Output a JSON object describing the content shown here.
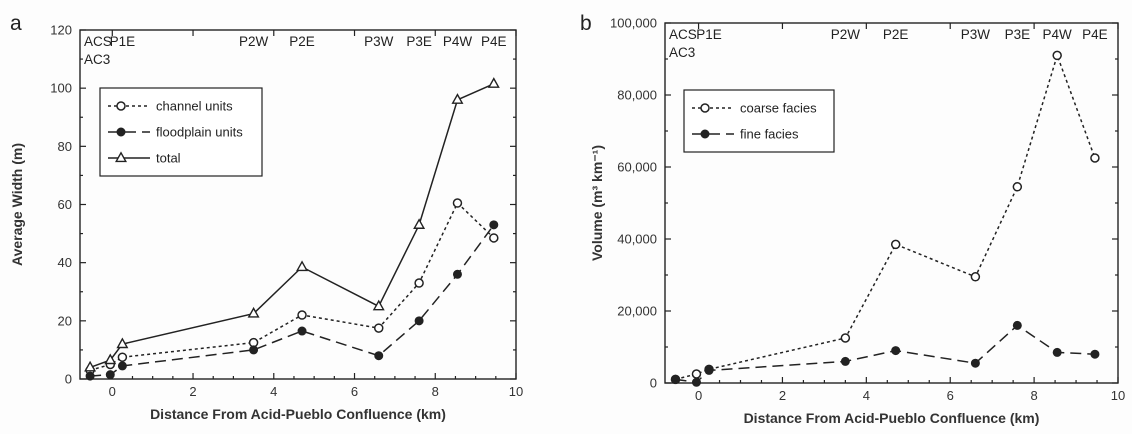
{
  "chart_data": [
    {
      "panel": "a",
      "type": "line",
      "xlabel": "Distance From Acid-Pueblo Confluence (km)",
      "ylabel": "Average Width (m)",
      "xlim": [
        -0.8,
        10
      ],
      "ylim": [
        0,
        120
      ],
      "xticks": [
        0,
        2,
        4,
        6,
        8,
        10
      ],
      "yticks": [
        0,
        20,
        40,
        60,
        80,
        100,
        120
      ],
      "site_labels": [
        {
          "label": "ACS",
          "x": -0.55,
          "row": 1
        },
        {
          "label": "AC3",
          "x": -0.55,
          "row": 2
        },
        {
          "label": "P1E",
          "x": 0.25,
          "row": 1
        },
        {
          "label": "P2W",
          "x": 3.5,
          "row": 1
        },
        {
          "label": "P2E",
          "x": 4.7,
          "row": 1
        },
        {
          "label": "P3W",
          "x": 6.6,
          "row": 1
        },
        {
          "label": "P3E",
          "x": 7.6,
          "row": 1
        },
        {
          "label": "P4W",
          "x": 8.55,
          "row": 1
        },
        {
          "label": "P4E",
          "x": 9.45,
          "row": 1
        }
      ],
      "legend": {
        "position": "upper-left"
      },
      "series": [
        {
          "name": "channel units",
          "marker": "open-circle",
          "dash": "dotted",
          "x": [
            -0.55,
            -0.05,
            0.25,
            3.5,
            4.7,
            6.6,
            7.6,
            8.55,
            9.45
          ],
          "y": [
            3,
            5,
            7.5,
            12.5,
            22,
            17.5,
            33,
            60.5,
            48.5
          ]
        },
        {
          "name": "floodplain units",
          "marker": "filled-circle",
          "dash": "dashed",
          "x": [
            -0.55,
            -0.05,
            0.25,
            3.5,
            4.7,
            6.6,
            7.6,
            8.55,
            9.45
          ],
          "y": [
            1,
            1.5,
            4.5,
            10,
            16.5,
            8,
            20,
            36,
            53
          ]
        },
        {
          "name": "total",
          "marker": "open-triangle",
          "dash": "solid",
          "x": [
            -0.55,
            -0.05,
            0.25,
            3.5,
            4.7,
            6.6,
            7.6,
            8.55,
            9.45
          ],
          "y": [
            4,
            6.5,
            12,
            22.5,
            38.5,
            25,
            53,
            96,
            101.5
          ]
        }
      ]
    },
    {
      "panel": "b",
      "type": "line",
      "xlabel": "Distance From Acid-Pueblo Confluence (km)",
      "ylabel": "Volume (m³ km⁻¹)",
      "xlim": [
        -0.8,
        10
      ],
      "ylim": [
        0,
        100000
      ],
      "xticks": [
        0,
        2,
        4,
        6,
        8,
        10
      ],
      "yticks": [
        0,
        20000,
        40000,
        60000,
        80000,
        100000
      ],
      "ytick_labels": [
        "0",
        "20,000",
        "40,000",
        "60,000",
        "80,000",
        "100,000"
      ],
      "site_labels": [
        {
          "label": "ACS",
          "x": -0.55,
          "row": 1
        },
        {
          "label": "AC3",
          "x": -0.55,
          "row": 2
        },
        {
          "label": "P1E",
          "x": 0.25,
          "row": 1
        },
        {
          "label": "P2W",
          "x": 3.5,
          "row": 1
        },
        {
          "label": "P2E",
          "x": 4.7,
          "row": 1
        },
        {
          "label": "P3W",
          "x": 6.6,
          "row": 1
        },
        {
          "label": "P3E",
          "x": 7.6,
          "row": 1
        },
        {
          "label": "P4W",
          "x": 8.55,
          "row": 1
        },
        {
          "label": "P4E",
          "x": 9.45,
          "row": 1
        }
      ],
      "legend": {
        "position": "upper-left"
      },
      "series": [
        {
          "name": "coarse facies",
          "marker": "open-circle",
          "dash": "dotted",
          "x": [
            -0.55,
            -0.05,
            0.25,
            3.5,
            4.7,
            6.6,
            7.6,
            8.55,
            9.45
          ],
          "y": [
            1000,
            2500,
            3800,
            12500,
            38500,
            29500,
            54500,
            91000,
            62500
          ]
        },
        {
          "name": "fine facies",
          "marker": "filled-circle",
          "dash": "dashed",
          "x": [
            -0.55,
            -0.05,
            0.25,
            3.5,
            4.7,
            6.6,
            7.6,
            8.55,
            9.45
          ],
          "y": [
            1000,
            200,
            3500,
            6000,
            9000,
            5500,
            16000,
            8500,
            8000
          ]
        }
      ]
    }
  ]
}
